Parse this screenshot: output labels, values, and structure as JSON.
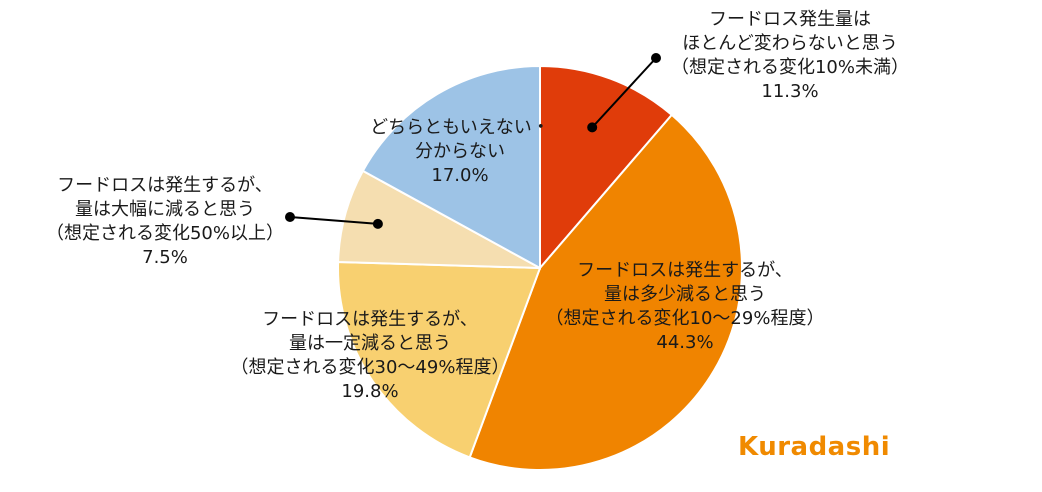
{
  "chart_data": {
    "type": "pie",
    "title": "",
    "slices": [
      {
        "label": "フードロス発生量はほとんど変わらないと思う（想定される変化10%未満）",
        "lines": [
          "フードロス発生量は",
          "ほとんど変わらないと思う",
          "（想定される変化10%未満）"
        ],
        "value": 11.3,
        "value_label": "11.3%",
        "color": "#e03c0a"
      },
      {
        "label": "フードロスは発生するが、量は多少減ると思う（想定される変化10～29%程度）",
        "lines": [
          "フードロスは発生するが、",
          "量は多少減ると思う",
          "（想定される変化10～29%程度）"
        ],
        "value": 44.3,
        "value_label": "44.3%",
        "color": "#f08400"
      },
      {
        "label": "フードロスは発生するが、量は一定減ると思う（想定される変化30～49%程度）",
        "lines": [
          "フードロスは発生するが、",
          "量は一定減ると思う",
          "（想定される変化30～49%程度）"
        ],
        "value": 19.8,
        "value_label": "19.8%",
        "color": "#f8d070"
      },
      {
        "label": "フードロスは発生するが、量は大幅に減ると思う（想定される変化50%以上）",
        "lines": [
          "フードロスは発生するが、",
          "量は大幅に減ると思う",
          "（想定される変化50%以上）"
        ],
        "value": 7.5,
        "value_label": "7.5%",
        "color": "#f5deb0"
      },
      {
        "label": "どちらともいえない・分からない",
        "lines": [
          "どちらともいえない・",
          "分からない"
        ],
        "value": 17.0,
        "value_label": "17.0%",
        "color": "#9dc3e6"
      }
    ]
  },
  "logo": {
    "text": "Kuradashi",
    "color": "#f08a00"
  }
}
